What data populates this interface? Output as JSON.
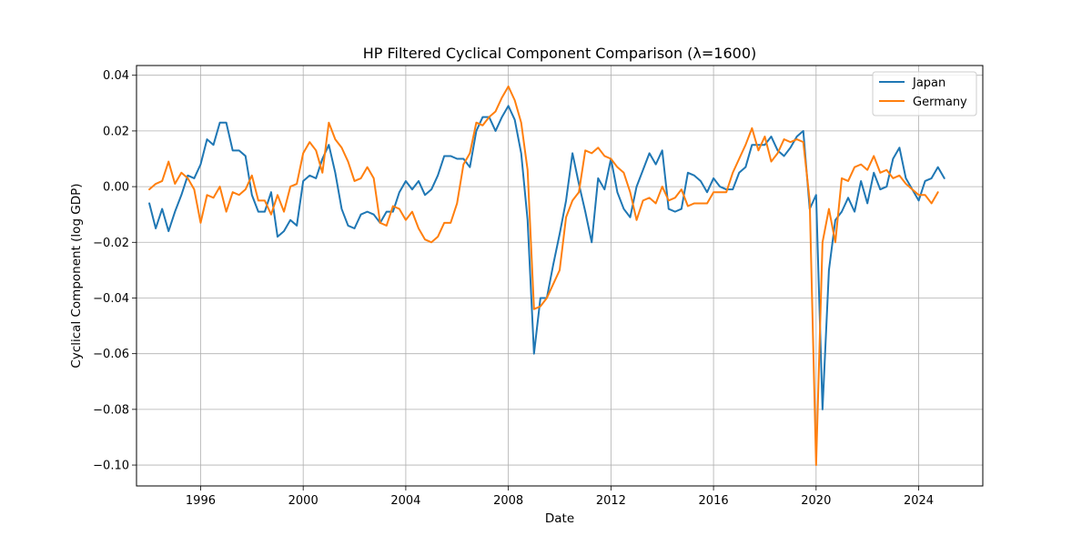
{
  "chart_data": {
    "type": "line",
    "title": "HP Filtered Cyclical Component Comparison (λ=1600)",
    "xlabel": "Date",
    "ylabel": "Cyclical Component (log GDP)",
    "x_unit": "year",
    "xlim": [
      1993.5,
      2026.5
    ],
    "ylim": [
      -0.1075,
      0.0435
    ],
    "x_ticks": [
      1996,
      2000,
      2004,
      2008,
      2012,
      2016,
      2020,
      2024
    ],
    "y_ticks": [
      -0.1,
      -0.08,
      -0.06,
      -0.04,
      -0.02,
      0.0,
      0.02,
      0.04
    ],
    "y_tick_labels": [
      "−0.10",
      "−0.08",
      "−0.06",
      "−0.04",
      "−0.02",
      "0.00",
      "0.02",
      "0.04"
    ],
    "grid": true,
    "legend_position": "top-right",
    "colors": {
      "Japan": "#1f77b4",
      "Germany": "#ff7f0e"
    },
    "series": [
      {
        "name": "Japan",
        "x_start": 1994.0,
        "x_step": 0.25,
        "values": [
          -0.006,
          -0.015,
          -0.008,
          -0.016,
          -0.009,
          -0.003,
          0.004,
          0.003,
          0.008,
          0.017,
          0.015,
          0.023,
          0.023,
          0.013,
          0.013,
          0.011,
          -0.003,
          -0.009,
          -0.009,
          -0.002,
          -0.018,
          -0.016,
          -0.012,
          -0.014,
          0.002,
          0.004,
          0.003,
          0.01,
          0.015,
          0.005,
          -0.008,
          -0.014,
          -0.015,
          -0.01,
          -0.009,
          -0.01,
          -0.013,
          -0.009,
          -0.009,
          -0.002,
          0.002,
          -0.001,
          0.002,
          -0.003,
          -0.001,
          0.004,
          0.011,
          0.011,
          0.01,
          0.01,
          0.007,
          0.02,
          0.025,
          0.025,
          0.02,
          0.025,
          0.029,
          0.024,
          0.012,
          -0.012,
          -0.06,
          -0.04,
          -0.04,
          -0.028,
          -0.017,
          -0.005,
          0.012,
          0.001,
          -0.009,
          -0.02,
          0.003,
          -0.001,
          0.01,
          -0.002,
          -0.008,
          -0.011,
          0.0,
          0.006,
          0.012,
          0.008,
          0.013,
          -0.008,
          -0.009,
          -0.008,
          0.005,
          0.004,
          0.002,
          -0.002,
          0.003,
          0.0,
          -0.001,
          -0.001,
          0.005,
          0.007,
          0.015,
          0.015,
          0.015,
          0.018,
          0.013,
          0.011,
          0.014,
          0.018,
          0.02,
          -0.008,
          -0.003,
          -0.08,
          -0.03,
          -0.012,
          -0.009,
          -0.004,
          -0.009,
          0.002,
          -0.006,
          0.005,
          -0.001,
          0.0,
          0.01,
          0.014,
          0.003,
          -0.001,
          -0.005,
          0.002,
          0.003,
          0.007,
          0.003
        ]
      },
      {
        "name": "Germany",
        "x_start": 1994.0,
        "x_step": 0.25,
        "values": [
          -0.001,
          0.001,
          0.002,
          0.009,
          0.001,
          0.005,
          0.003,
          -0.001,
          -0.013,
          -0.003,
          -0.004,
          0.0,
          -0.009,
          -0.002,
          -0.003,
          -0.001,
          0.004,
          -0.005,
          -0.005,
          -0.01,
          -0.003,
          -0.009,
          0.0,
          0.001,
          0.012,
          0.016,
          0.013,
          0.005,
          0.023,
          0.017,
          0.014,
          0.009,
          0.002,
          0.003,
          0.007,
          0.003,
          -0.013,
          -0.014,
          -0.007,
          -0.008,
          -0.012,
          -0.009,
          -0.015,
          -0.019,
          -0.02,
          -0.018,
          -0.013,
          -0.013,
          -0.006,
          0.008,
          0.012,
          0.023,
          0.022,
          0.025,
          0.027,
          0.032,
          0.036,
          0.031,
          0.023,
          0.006,
          -0.044,
          -0.043,
          -0.04,
          -0.035,
          -0.03,
          -0.011,
          -0.005,
          -0.002,
          0.013,
          0.012,
          0.014,
          0.011,
          0.01,
          0.007,
          0.005,
          -0.002,
          -0.012,
          -0.005,
          -0.004,
          -0.006,
          0.0,
          -0.005,
          -0.004,
          -0.001,
          -0.007,
          -0.006,
          -0.006,
          -0.006,
          -0.002,
          -0.002,
          -0.002,
          0.005,
          0.01,
          0.015,
          0.021,
          0.013,
          0.018,
          0.009,
          0.012,
          0.017,
          0.016,
          0.017,
          0.016,
          -0.005,
          -0.1,
          -0.02,
          -0.008,
          -0.02,
          0.003,
          0.002,
          0.007,
          0.008,
          0.006,
          0.011,
          0.005,
          0.006,
          0.003,
          0.004,
          0.001,
          -0.001,
          -0.003,
          -0.003,
          -0.006,
          -0.002
        ]
      }
    ]
  }
}
